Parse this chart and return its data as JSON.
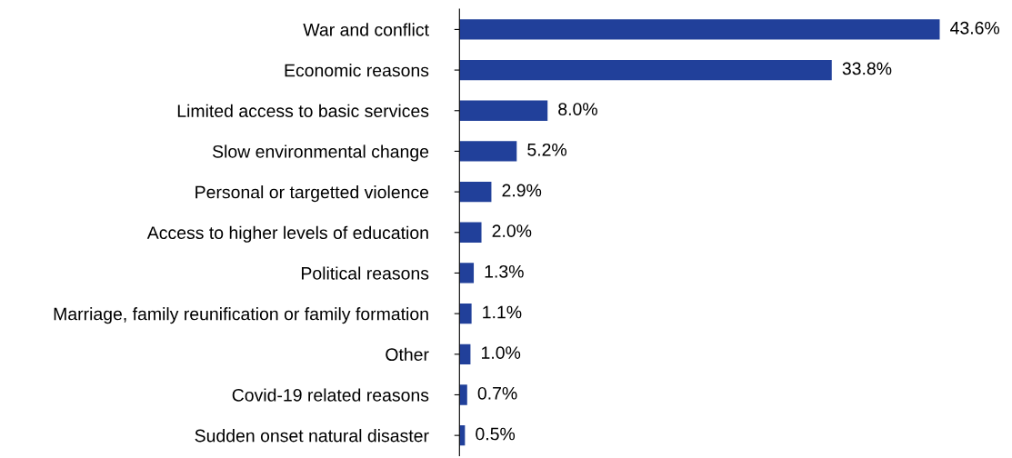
{
  "chart_data": {
    "type": "bar",
    "orientation": "horizontal",
    "categories": [
      "War and conflict",
      "Economic reasons",
      "Limited access to basic services",
      "Slow environmental change",
      "Personal or targetted violence",
      "Access to higher levels of education",
      "Political reasons",
      "Marriage, family reunification or family formation",
      "Other",
      "Covid-19 related reasons",
      "Sudden onset natural disaster"
    ],
    "values": [
      43.6,
      33.8,
      8.0,
      5.2,
      2.9,
      2.0,
      1.3,
      1.1,
      1.0,
      0.7,
      0.5
    ],
    "value_labels": [
      "43.6%",
      "33.8%",
      "8.0%",
      "5.2%",
      "2.9%",
      "2.0%",
      "1.3%",
      "1.1%",
      "1.0%",
      "0.7%",
      "0.5%"
    ],
    "color": "#21409a",
    "grid": false,
    "legend": false
  }
}
